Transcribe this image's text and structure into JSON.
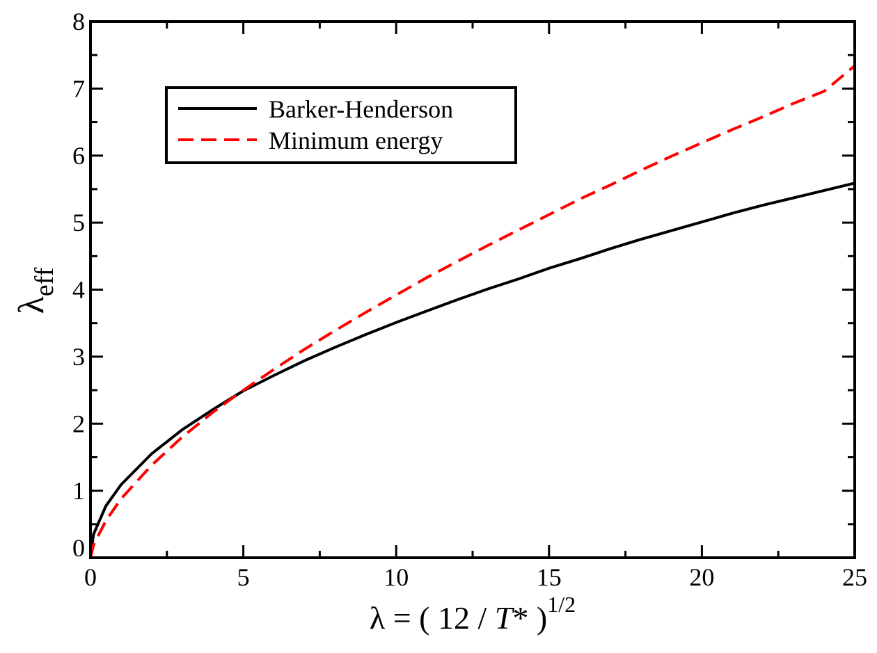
{
  "chart_data": {
    "type": "line",
    "title": "",
    "xlabel": {
      "prefix": "λ = ( 12 / ",
      "italic": "T",
      "suffix": "* )",
      "superscript": "1/2"
    },
    "ylabel": {
      "symbol": "λ",
      "subscript": "eff"
    },
    "xlim": [
      0,
      25
    ],
    "ylim": [
      0,
      8
    ],
    "xticks": [
      "0",
      "5",
      "10",
      "15",
      "20",
      "25"
    ],
    "yticks": [
      "0",
      "1",
      "2",
      "3",
      "4",
      "5",
      "6",
      "7",
      "8"
    ],
    "grid": false,
    "legend_position": "top-left",
    "series": [
      {
        "name": "Barker-Henderson",
        "color": "#000000",
        "dash": "solid",
        "x": [
          0,
          0.1,
          0.5,
          1,
          2,
          3,
          4,
          5,
          6,
          7,
          8,
          9,
          10,
          11,
          12,
          13,
          14,
          15,
          16,
          17,
          18,
          19,
          20,
          21,
          22,
          23,
          24,
          25
        ],
        "y": [
          0,
          0.35,
          0.77,
          1.09,
          1.55,
          1.91,
          2.21,
          2.49,
          2.72,
          2.94,
          3.14,
          3.33,
          3.51,
          3.68,
          3.85,
          4.01,
          4.16,
          4.32,
          4.46,
          4.61,
          4.75,
          4.88,
          5.01,
          5.14,
          5.26,
          5.37,
          5.48,
          5.59
        ]
      },
      {
        "name": "Minimum energy",
        "color": "#ff0000",
        "dash": "dashed",
        "x": [
          0,
          0.1,
          0.5,
          1,
          2,
          3,
          4,
          5,
          6,
          7,
          8,
          9,
          10,
          11,
          12,
          13,
          14,
          15,
          16,
          17,
          18,
          19,
          20,
          21,
          22,
          23,
          24,
          25
        ],
        "y": [
          0,
          0.19,
          0.55,
          0.88,
          1.38,
          1.8,
          2.17,
          2.5,
          2.81,
          3.11,
          3.39,
          3.66,
          3.92,
          4.18,
          4.42,
          4.66,
          4.89,
          5.12,
          5.35,
          5.56,
          5.78,
          5.99,
          6.19,
          6.39,
          6.58,
          6.78,
          6.96,
          7.34
        ]
      }
    ]
  }
}
